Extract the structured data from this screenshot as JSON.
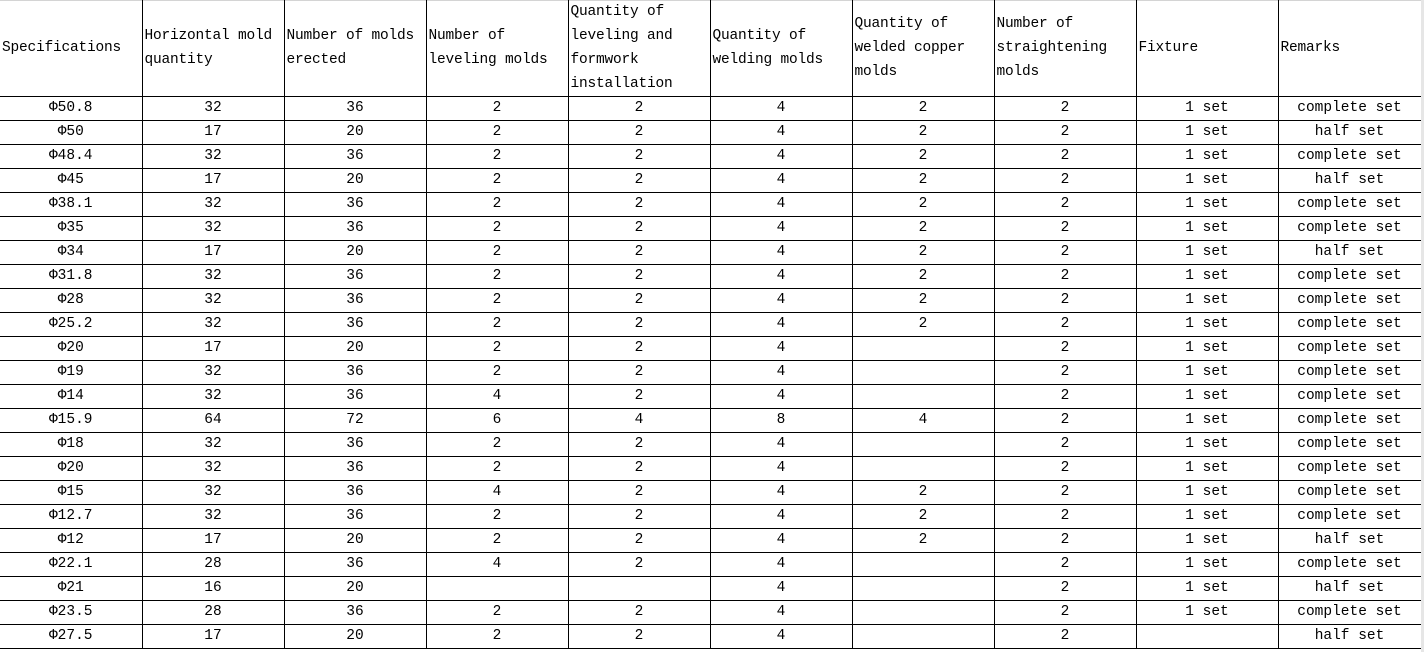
{
  "table": {
    "headers": [
      "Specifications",
      "Horizontal mold quantity",
      "Number of molds erected",
      "Number of leveling molds",
      "Quantity of leveling and formwork installation",
      "Quantity of welding molds",
      "Quantity of welded copper molds",
      "Number of straightening molds",
      "Fixture",
      "Remarks"
    ],
    "rows": [
      [
        "Φ50.8",
        "32",
        "36",
        "2",
        "2",
        "4",
        "2",
        "2",
        "1 set",
        "complete set"
      ],
      [
        "Φ50",
        "17",
        "20",
        "2",
        "2",
        "4",
        "2",
        "2",
        "1 set",
        "half set"
      ],
      [
        "Φ48.4",
        "32",
        "36",
        "2",
        "2",
        "4",
        "2",
        "2",
        "1 set",
        "complete set"
      ],
      [
        "Φ45",
        "17",
        "20",
        "2",
        "2",
        "4",
        "2",
        "2",
        "1 set",
        "half set"
      ],
      [
        "Φ38.1",
        "32",
        "36",
        "2",
        "2",
        "4",
        "2",
        "2",
        "1 set",
        "complete set"
      ],
      [
        "Φ35",
        "32",
        "36",
        "2",
        "2",
        "4",
        "2",
        "2",
        "1 set",
        "complete set"
      ],
      [
        "Φ34",
        "17",
        "20",
        "2",
        "2",
        "4",
        "2",
        "2",
        "1 set",
        "half set"
      ],
      [
        "Φ31.8",
        "32",
        "36",
        "2",
        "2",
        "4",
        "2",
        "2",
        "1 set",
        "complete set"
      ],
      [
        "Φ28",
        "32",
        "36",
        "2",
        "2",
        "4",
        "2",
        "2",
        "1 set",
        "complete set"
      ],
      [
        "Φ25.2",
        "32",
        "36",
        "2",
        "2",
        "4",
        "2",
        "2",
        "1 set",
        "complete set"
      ],
      [
        "Φ20",
        "17",
        "20",
        "2",
        "2",
        "4",
        "",
        "2",
        "1 set",
        "complete set"
      ],
      [
        "Φ19",
        "32",
        "36",
        "2",
        "2",
        "4",
        "",
        "2",
        "1 set",
        "complete set"
      ],
      [
        "Φ14",
        "32",
        "36",
        "4",
        "2",
        "4",
        "",
        "2",
        "1 set",
        "complete set"
      ],
      [
        "Φ15.9",
        "64",
        "72",
        "6",
        "4",
        "8",
        "4",
        "2",
        "1 set",
        "complete set"
      ],
      [
        "Φ18",
        "32",
        "36",
        "2",
        "2",
        "4",
        "",
        "2",
        "1 set",
        "complete set"
      ],
      [
        "Φ20",
        "32",
        "36",
        "2",
        "2",
        "4",
        "",
        "2",
        "1 set",
        "complete set"
      ],
      [
        "Φ15",
        "32",
        "36",
        "4",
        "2",
        "4",
        "2",
        "2",
        "1 set",
        "complete set"
      ],
      [
        "Φ12.7",
        "32",
        "36",
        "2",
        "2",
        "4",
        "2",
        "2",
        "1 set",
        "complete set"
      ],
      [
        "Φ12",
        "17",
        "20",
        "2",
        "2",
        "4",
        "2",
        "2",
        "1 set",
        "half set"
      ],
      [
        "Φ22.1",
        "28",
        "36",
        "4",
        "2",
        "4",
        "",
        "2",
        "1 set",
        "complete set"
      ],
      [
        "Φ21",
        "16",
        "20",
        "",
        "",
        "4",
        "",
        "2",
        "1 set",
        "half set"
      ],
      [
        "Φ23.5",
        "28",
        "36",
        "2",
        "2",
        "4",
        "",
        "2",
        "1 set",
        "complete set"
      ],
      [
        "Φ27.5",
        "17",
        "20",
        "2",
        "2",
        "4",
        "",
        "2",
        "",
        "half set"
      ]
    ]
  }
}
